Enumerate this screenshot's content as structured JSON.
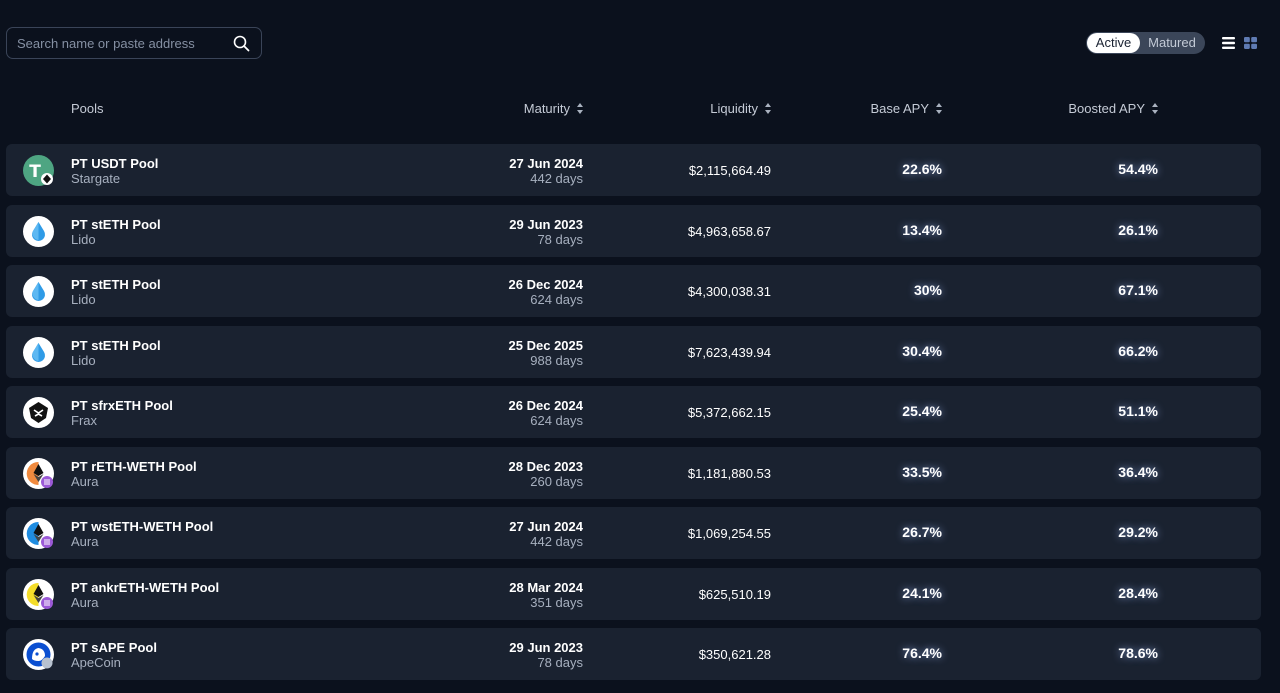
{
  "search": {
    "placeholder": "Search name or paste address"
  },
  "status_toggle": {
    "active": "Active",
    "matured": "Matured"
  },
  "columns": {
    "pools": "Pools",
    "maturity": "Maturity",
    "liquidity": "Liquidity",
    "base_apy": "Base APY",
    "boosted_apy": "Boosted APY"
  },
  "colors": {
    "background": "#0b111d",
    "row": "#1a2230",
    "muted_text": "#a7b0bf"
  },
  "pools": [
    {
      "icon": "usdt-stargate-icon",
      "name": "PT USDT Pool",
      "protocol": "Stargate",
      "maturity_date": "27 Jun 2024",
      "maturity_days": "442 days",
      "liquidity": "$2,115,664.49",
      "base_apy": "22.6%",
      "boosted_apy": "54.4%"
    },
    {
      "icon": "lido-icon",
      "name": "PT stETH Pool",
      "protocol": "Lido",
      "maturity_date": "29 Jun 2023",
      "maturity_days": "78 days",
      "liquidity": "$4,963,658.67",
      "base_apy": "13.4%",
      "boosted_apy": "26.1%"
    },
    {
      "icon": "lido-icon",
      "name": "PT stETH Pool",
      "protocol": "Lido",
      "maturity_date": "26 Dec 2024",
      "maturity_days": "624 days",
      "liquidity": "$4,300,038.31",
      "base_apy": "30%",
      "boosted_apy": "67.1%"
    },
    {
      "icon": "lido-icon",
      "name": "PT stETH Pool",
      "protocol": "Lido",
      "maturity_date": "25 Dec 2025",
      "maturity_days": "988 days",
      "liquidity": "$7,623,439.94",
      "base_apy": "30.4%",
      "boosted_apy": "66.2%"
    },
    {
      "icon": "frax-icon",
      "name": "PT sfrxETH Pool",
      "protocol": "Frax",
      "maturity_date": "26 Dec 2024",
      "maturity_days": "624 days",
      "liquidity": "$5,372,662.15",
      "base_apy": "25.4%",
      "boosted_apy": "51.1%"
    },
    {
      "icon": "reth-aura-icon",
      "name": "PT rETH-WETH Pool",
      "protocol": "Aura",
      "maturity_date": "28 Dec 2023",
      "maturity_days": "260 days",
      "liquidity": "$1,181,880.53",
      "base_apy": "33.5%",
      "boosted_apy": "36.4%"
    },
    {
      "icon": "wsteth-aura-icon",
      "name": "PT wstETH-WETH Pool",
      "protocol": "Aura",
      "maturity_date": "27 Jun 2024",
      "maturity_days": "442 days",
      "liquidity": "$1,069,254.55",
      "base_apy": "26.7%",
      "boosted_apy": "29.2%"
    },
    {
      "icon": "ankreth-aura-icon",
      "name": "PT ankrETH-WETH Pool",
      "protocol": "Aura",
      "maturity_date": "28 Mar 2024",
      "maturity_days": "351 days",
      "liquidity": "$625,510.19",
      "base_apy": "24.1%",
      "boosted_apy": "28.4%"
    },
    {
      "icon": "apecoin-icon",
      "name": "PT sAPE Pool",
      "protocol": "ApeCoin",
      "maturity_date": "29 Jun 2023",
      "maturity_days": "78 days",
      "liquidity": "$350,621.28",
      "base_apy": "76.4%",
      "boosted_apy": "78.6%"
    }
  ]
}
